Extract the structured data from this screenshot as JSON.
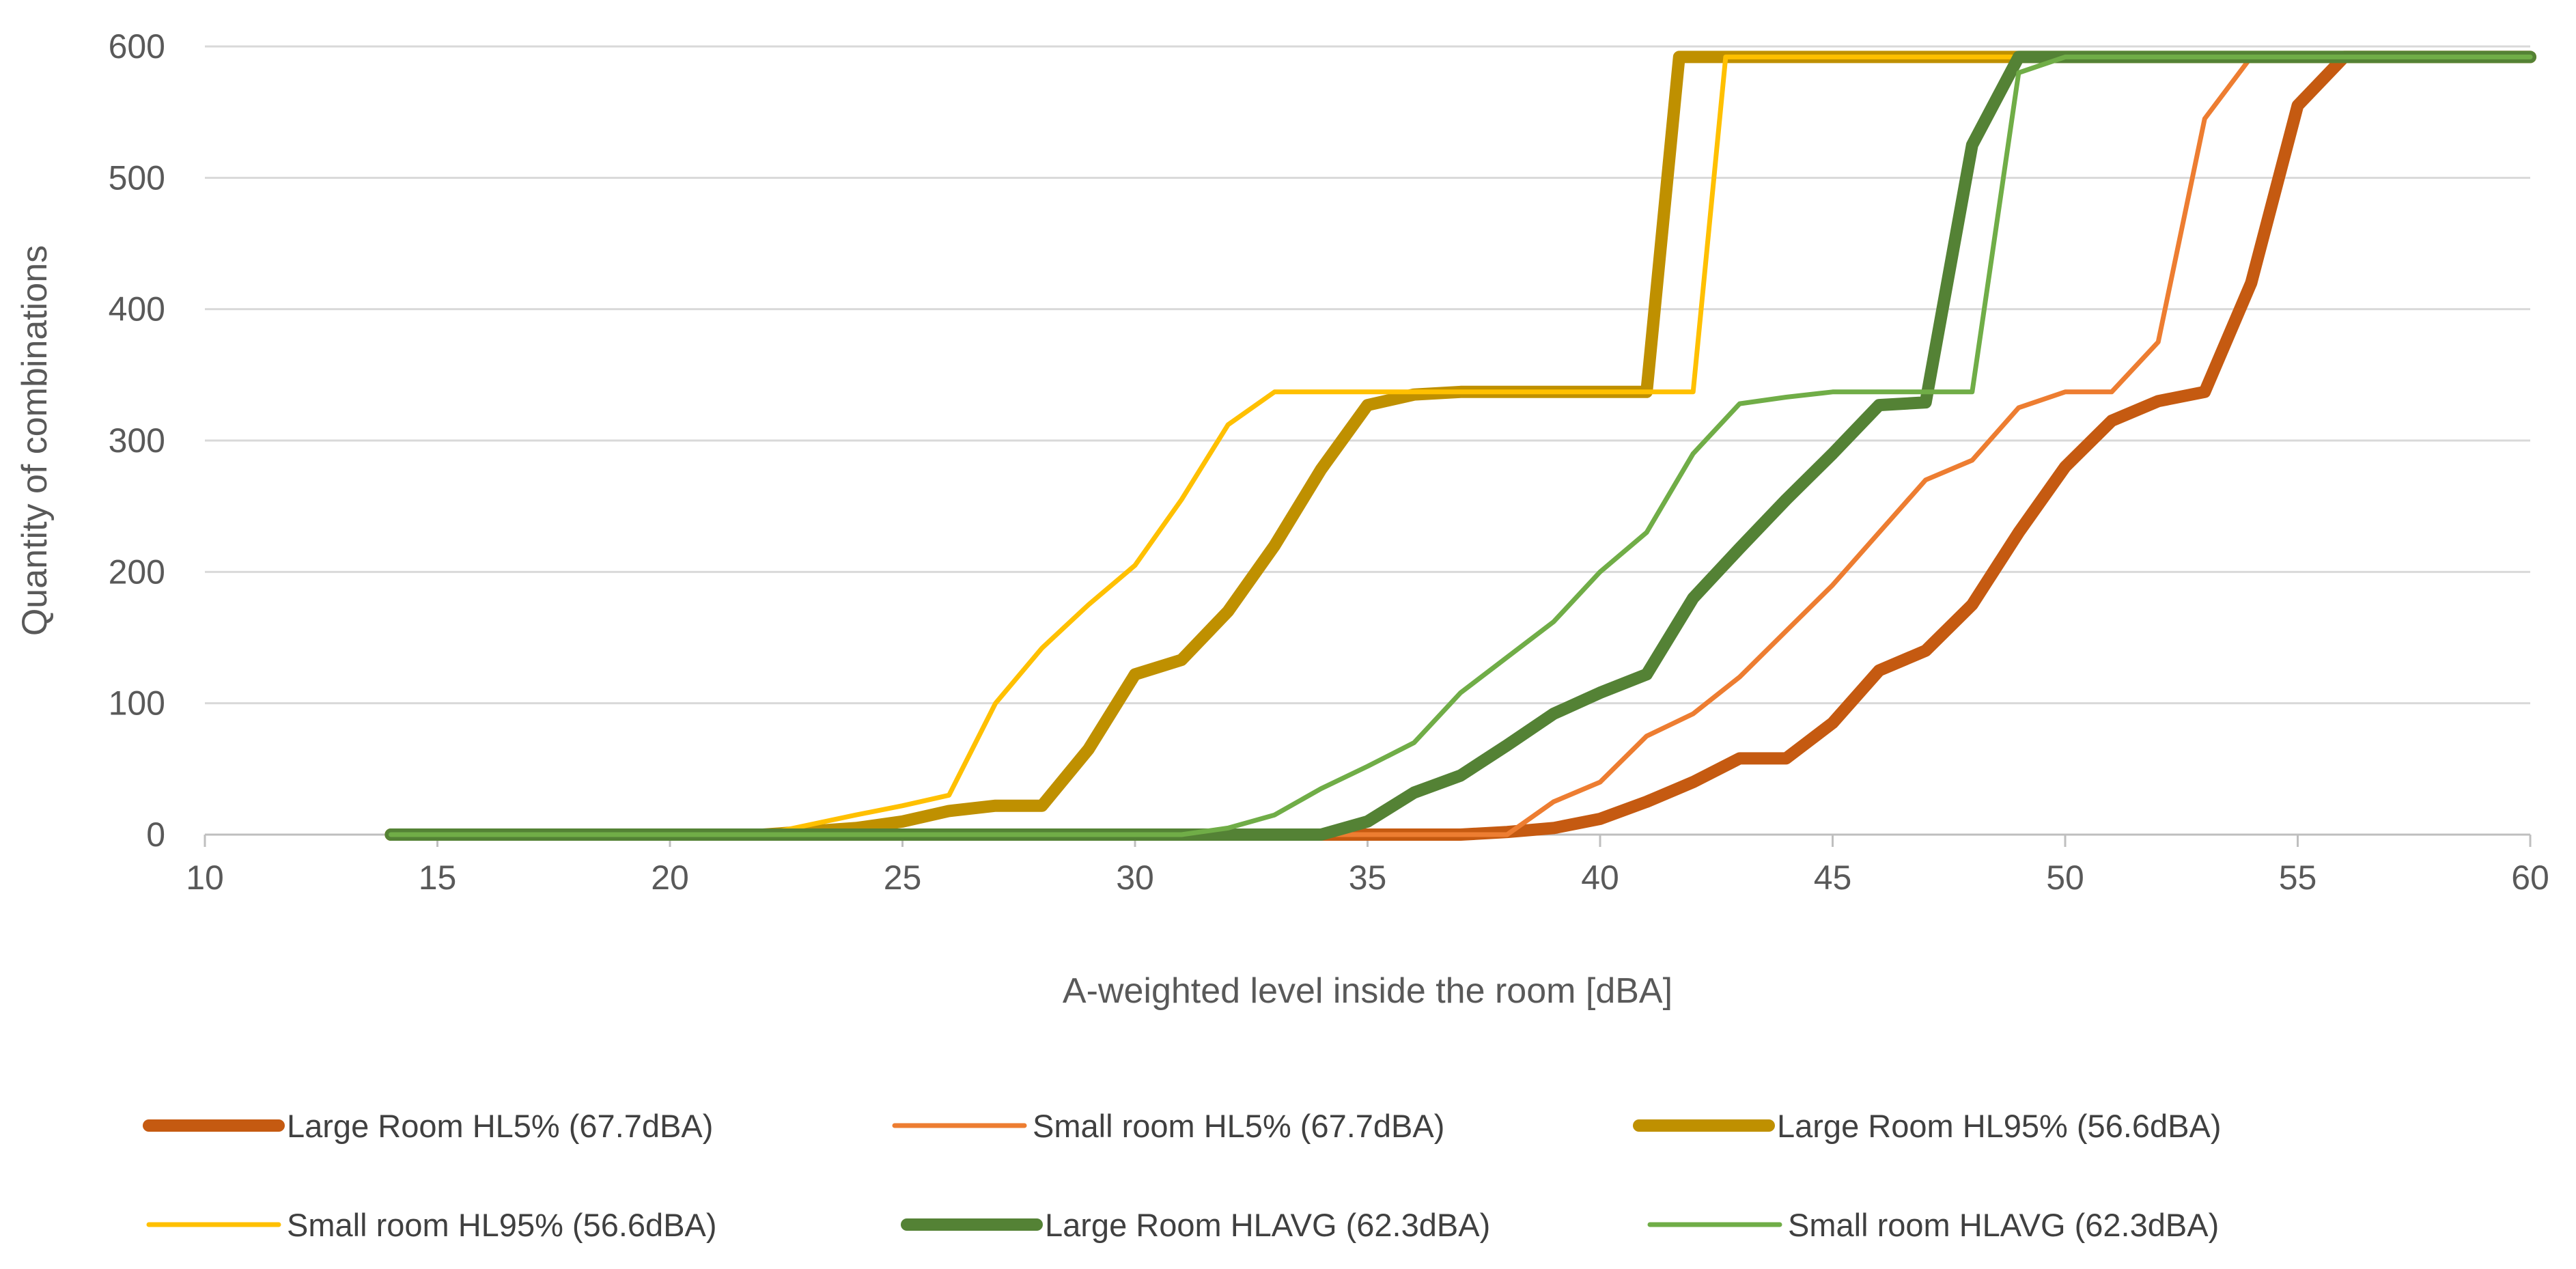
{
  "chart_data": {
    "type": "line",
    "title": "",
    "xlabel": "A-weighted level inside the room [dBA]",
    "ylabel": "Quantity of combinations",
    "xlim": [
      10,
      60
    ],
    "ylim": [
      0,
      600
    ],
    "xticks": [
      10,
      15,
      20,
      25,
      30,
      35,
      40,
      45,
      50,
      55,
      60
    ],
    "yticks": [
      0,
      100,
      200,
      300,
      400,
      500,
      600
    ],
    "grid": "horizontal",
    "legend_position": "bottom",
    "series": [
      {
        "name": "Large Room HL5% (67.7dBA)",
        "color": "#C55A11",
        "weight": "thick",
        "points": [
          [
            14,
            0
          ],
          [
            37,
            0
          ],
          [
            38,
            2
          ],
          [
            39,
            5
          ],
          [
            40,
            12
          ],
          [
            41,
            25
          ],
          [
            42,
            40
          ],
          [
            43,
            58
          ],
          [
            44,
            58
          ],
          [
            45,
            85
          ],
          [
            46,
            125
          ],
          [
            47,
            140
          ],
          [
            48,
            175
          ],
          [
            49,
            230
          ],
          [
            50,
            280
          ],
          [
            51,
            315
          ],
          [
            52,
            330
          ],
          [
            53,
            337
          ],
          [
            54,
            420
          ],
          [
            55,
            555
          ],
          [
            56,
            592
          ],
          [
            60,
            592
          ]
        ]
      },
      {
        "name": "Small room HL5% (67.7dBA)",
        "color": "#ED7D31",
        "weight": "thin",
        "points": [
          [
            14,
            0
          ],
          [
            38,
            0
          ],
          [
            39,
            25
          ],
          [
            40,
            40
          ],
          [
            41,
            75
          ],
          [
            42,
            92
          ],
          [
            43,
            120
          ],
          [
            44,
            155
          ],
          [
            45,
            190
          ],
          [
            46,
            230
          ],
          [
            47,
            270
          ],
          [
            48,
            285
          ],
          [
            49,
            325
          ],
          [
            50,
            337
          ],
          [
            51,
            337
          ],
          [
            52,
            375
          ],
          [
            53,
            545
          ],
          [
            54,
            592
          ],
          [
            60,
            592
          ]
        ]
      },
      {
        "name": "Large Room HL95% (56.6dBA)",
        "color": "#BF9000",
        "weight": "thick",
        "points": [
          [
            14,
            0
          ],
          [
            22,
            0
          ],
          [
            24,
            5
          ],
          [
            25,
            10
          ],
          [
            26,
            18
          ],
          [
            27,
            22
          ],
          [
            28,
            22
          ],
          [
            29,
            65
          ],
          [
            30,
            122
          ],
          [
            31,
            133
          ],
          [
            32,
            170
          ],
          [
            33,
            220
          ],
          [
            34,
            278
          ],
          [
            35,
            327
          ],
          [
            36,
            335
          ],
          [
            37,
            337
          ],
          [
            38,
            337
          ],
          [
            39,
            337
          ],
          [
            40,
            337
          ],
          [
            41,
            337
          ],
          [
            41.7,
            592
          ],
          [
            42,
            592
          ],
          [
            60,
            592
          ]
        ]
      },
      {
        "name": "Small room HL95% (56.6dBA)",
        "color": "#FFC000",
        "weight": "thin",
        "points": [
          [
            14,
            0
          ],
          [
            22,
            0
          ],
          [
            24,
            15
          ],
          [
            25,
            22
          ],
          [
            26,
            30
          ],
          [
            27,
            100
          ],
          [
            28,
            142
          ],
          [
            29,
            175
          ],
          [
            30,
            205
          ],
          [
            31,
            255
          ],
          [
            32,
            312
          ],
          [
            33,
            337
          ],
          [
            34,
            337
          ],
          [
            35,
            337
          ],
          [
            36,
            337
          ],
          [
            37,
            337
          ],
          [
            38,
            337
          ],
          [
            39,
            337
          ],
          [
            40,
            337
          ],
          [
            41,
            337
          ],
          [
            42,
            337
          ],
          [
            42.7,
            592
          ],
          [
            43,
            592
          ],
          [
            60,
            592
          ]
        ]
      },
      {
        "name": "Large Room HLAVG (62.3dBA)",
        "color": "#548235",
        "weight": "thick",
        "points": [
          [
            14,
            0
          ],
          [
            34,
            0
          ],
          [
            35,
            10
          ],
          [
            36,
            32
          ],
          [
            37,
            45
          ],
          [
            38,
            68
          ],
          [
            39,
            92
          ],
          [
            40,
            108
          ],
          [
            41,
            122
          ],
          [
            42,
            180
          ],
          [
            43,
            218
          ],
          [
            44,
            255
          ],
          [
            45,
            290
          ],
          [
            46,
            327
          ],
          [
            47,
            329
          ],
          [
            48,
            525
          ],
          [
            49,
            592
          ],
          [
            60,
            592
          ]
        ]
      },
      {
        "name": "Small room HLAVG (62.3dBA)",
        "color": "#70AD47",
        "weight": "thin",
        "points": [
          [
            14,
            0
          ],
          [
            31,
            0
          ],
          [
            32,
            5
          ],
          [
            33,
            15
          ],
          [
            34,
            35
          ],
          [
            35,
            52
          ],
          [
            36,
            70
          ],
          [
            37,
            108
          ],
          [
            38,
            135
          ],
          [
            39,
            162
          ],
          [
            40,
            200
          ],
          [
            41,
            230
          ],
          [
            42,
            290
          ],
          [
            43,
            328
          ],
          [
            44,
            333
          ],
          [
            45,
            337
          ],
          [
            46,
            337
          ],
          [
            47,
            337
          ],
          [
            48,
            337
          ],
          [
            49,
            580
          ],
          [
            50,
            592
          ],
          [
            60,
            592
          ]
        ]
      }
    ]
  }
}
